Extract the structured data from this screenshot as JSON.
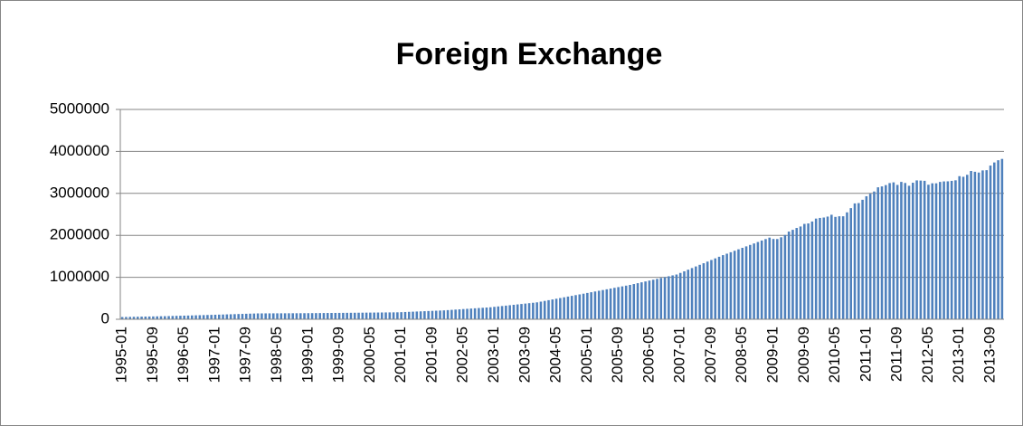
{
  "chart_data": {
    "type": "bar",
    "title": "Foreign Exchange",
    "color": "#4f81bd",
    "grid": true,
    "ylim": [
      0,
      5000000
    ],
    "yticks": [
      0,
      1000000,
      2000000,
      3000000,
      4000000,
      5000000
    ],
    "categories": [
      "1995-01",
      null,
      null,
      null,
      null,
      null,
      null,
      null,
      "1995-09",
      null,
      null,
      null,
      null,
      null,
      null,
      null,
      "1996-05",
      null,
      null,
      null,
      null,
      null,
      null,
      null,
      "1997-01",
      null,
      null,
      null,
      null,
      null,
      null,
      null,
      "1997-09",
      null,
      null,
      null,
      null,
      null,
      null,
      null,
      "1998-05",
      null,
      null,
      null,
      null,
      null,
      null,
      null,
      "1999-01",
      null,
      null,
      null,
      null,
      null,
      null,
      null,
      "1999-09",
      null,
      null,
      null,
      null,
      null,
      null,
      null,
      "2000-05",
      null,
      null,
      null,
      null,
      null,
      null,
      null,
      "2001-01",
      null,
      null,
      null,
      null,
      null,
      null,
      null,
      "2001-09",
      null,
      null,
      null,
      null,
      null,
      null,
      null,
      "2002-05",
      null,
      null,
      null,
      null,
      null,
      null,
      null,
      "2003-01",
      null,
      null,
      null,
      null,
      null,
      null,
      null,
      "2003-09",
      null,
      null,
      null,
      null,
      null,
      null,
      null,
      "2004-05",
      null,
      null,
      null,
      null,
      null,
      null,
      null,
      "2005-01",
      null,
      null,
      null,
      null,
      null,
      null,
      null,
      "2005-09",
      null,
      null,
      null,
      null,
      null,
      null,
      null,
      "2006-05",
      null,
      null,
      null,
      null,
      null,
      null,
      null,
      "2007-01",
      null,
      null,
      null,
      null,
      null,
      null,
      null,
      "2007-09",
      null,
      null,
      null,
      null,
      null,
      null,
      null,
      "2008-05",
      null,
      null,
      null,
      null,
      null,
      null,
      null,
      "2009-01",
      null,
      null,
      null,
      null,
      null,
      null,
      null,
      "2009-09",
      null,
      null,
      null,
      null,
      null,
      null,
      null,
      "2010-05",
      null,
      null,
      null,
      null,
      null,
      null,
      null,
      "2011-01",
      null,
      null,
      null,
      null,
      null,
      null,
      null,
      "2011-09",
      null,
      null,
      null,
      null,
      null,
      null,
      null,
      "2012-05",
      null,
      null,
      null,
      null,
      null,
      null,
      null,
      "2013-01",
      null,
      null,
      null,
      null,
      null,
      null,
      null,
      "2013-09",
      null,
      null,
      null
    ],
    "values": [
      53500,
      55300,
      57100,
      59000,
      60800,
      62600,
      64400,
      66300,
      68100,
      69900,
      71800,
      73600,
      76200,
      78800,
      81400,
      84100,
      86700,
      89300,
      91900,
      94500,
      97100,
      99800,
      102400,
      105000,
      107900,
      110800,
      113700,
      116600,
      119500,
      122400,
      125300,
      128300,
      131200,
      134100,
      137000,
      139900,
      140300,
      140800,
      141200,
      141600,
      142000,
      142500,
      142900,
      143300,
      143700,
      144200,
      144600,
      145000,
      145800,
      146600,
      147400,
      148200,
      149000,
      149800,
      150700,
      151500,
      152300,
      153100,
      153900,
      154700,
      155600,
      156500,
      157400,
      158300,
      159200,
      160100,
      161100,
      162000,
      162900,
      163800,
      164700,
      165600,
      169500,
      173400,
      177200,
      181100,
      185000,
      188900,
      192800,
      196700,
      200600,
      204400,
      208300,
      212200,
      218400,
      224600,
      230700,
      236900,
      243100,
      249300,
      255500,
      261700,
      267900,
      274000,
      280200,
      286400,
      296100,
      305900,
      315600,
      325400,
      335100,
      344900,
      354600,
      364300,
      374100,
      383800,
      393600,
      403300,
      420500,
      437700,
      454900,
      472200,
      489400,
      506600,
      523800,
      541000,
      558200,
      575500,
      592700,
      609900,
      627300,
      644700,
      662200,
      679600,
      697000,
      714400,
      731800,
      749200,
      766600,
      784100,
      801500,
      818900,
      839500,
      860100,
      880700,
      901400,
      922000,
      942600,
      963200,
      983800,
      1004400,
      1025100,
      1045700,
      1066300,
      1104800,
      1143300,
      1181800,
      1220300,
      1258800,
      1297300,
      1335700,
      1374200,
      1412700,
      1451200,
      1489700,
      1528200,
      1563000,
      1597800,
      1632700,
      1667500,
      1702300,
      1737100,
      1771900,
      1806700,
      1841500,
      1876400,
      1911200,
      1946000,
      1913600,
      1912100,
      1953700,
      2008900,
      2089500,
      2131600,
      2175700,
      2210800,
      2272600,
      2283500,
      2330300,
      2399200,
      2415200,
      2424600,
      2447100,
      2490500,
      2439600,
      2454300,
      2454300,
      2547800,
      2648300,
      2760900,
      2768500,
      2847300,
      2931700,
      2991400,
      3044700,
      3144700,
      3166000,
      3197500,
      3245300,
      3262500,
      3201700,
      3273800,
      3247900,
      3181100,
      3253600,
      3309600,
      3305000,
      3299300,
      3206100,
      3240000,
      3240000,
      3272800,
      3285100,
      3287400,
      3297900,
      3311600,
      3410100,
      3395400,
      3442600,
      3534500,
      3514800,
      3496700,
      3547800,
      3553000,
      3662700,
      3736600,
      3789500,
      3821300
    ]
  }
}
